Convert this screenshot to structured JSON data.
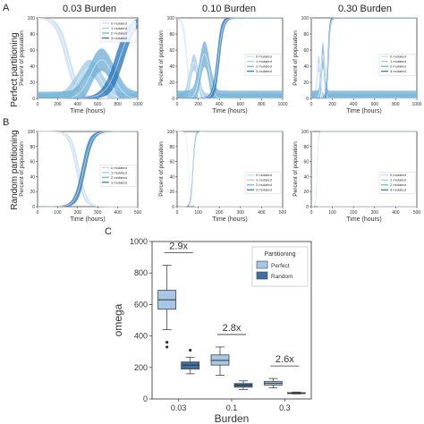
{
  "figure": {
    "col_headers": [
      "0.03 Burden",
      "0.10 Burden",
      "0.30 Burden"
    ],
    "panel_letters": [
      "A",
      "B",
      "C"
    ],
    "row_labels": [
      "Perfect partitioning",
      "Random partitioning"
    ],
    "colors": {
      "light": "#c6dbef",
      "mid1": "#9ecae1",
      "mid2": "#6baed6",
      "dark": "#2171b5",
      "box_perfect": "#a6c8e6",
      "box_random": "#3d6fa3",
      "axis": "#444444"
    }
  },
  "chart_data": [
    {
      "id": "A1",
      "type": "area",
      "panel": "A",
      "xlabel": "Time (hours)",
      "ylabel": "Percent of population",
      "xlim": [
        0,
        1000
      ],
      "ylim": [
        0,
        100
      ],
      "xticks": [
        0,
        200,
        400,
        600,
        800,
        1000
      ],
      "yticks": [
        0,
        20,
        40,
        60,
        80,
        100
      ],
      "legend": [
        "0 mutated",
        "1 mutated",
        "2 mutated",
        "3 mutated"
      ],
      "legend_position": "top-right",
      "series": [
        {
          "name": "0 mutated",
          "t_cross": 300,
          "width": 120,
          "shape": "decay",
          "band": 12
        },
        {
          "name": "1 mutated",
          "t_cross": 520,
          "width": 150,
          "shape": "peak",
          "band": 10,
          "peak": 38
        },
        {
          "name": "2 mutated",
          "t_cross": 640,
          "width": 150,
          "shape": "peak",
          "band": 14,
          "peak": 48
        },
        {
          "name": "3 mutated",
          "t_cross": 820,
          "width": 150,
          "shape": "rise",
          "band": 18
        }
      ]
    },
    {
      "id": "A2",
      "type": "area",
      "panel": "A",
      "xlabel": "Time (hours)",
      "ylabel": "Percent of population",
      "xlim": [
        0,
        1000
      ],
      "ylim": [
        0,
        100
      ],
      "xticks": [
        0,
        200,
        400,
        600,
        800,
        1000
      ],
      "yticks": [
        0,
        20,
        40,
        60,
        80,
        100
      ],
      "legend": [
        "0 mutated",
        "1 mutated",
        "2 mutated",
        "3 mutated"
      ],
      "legend_position": "right",
      "series": [
        {
          "name": "0 mutated",
          "t_cross": 90,
          "width": 40,
          "shape": "decay",
          "band": 10
        },
        {
          "name": "1 mutated",
          "t_cross": 160,
          "width": 50,
          "shape": "peak",
          "band": 10,
          "peak": 45
        },
        {
          "name": "2 mutated",
          "t_cross": 260,
          "width": 60,
          "shape": "peak",
          "band": 16,
          "peak": 55
        },
        {
          "name": "3 mutated",
          "t_cross": 390,
          "width": 50,
          "shape": "rise",
          "band": 18
        }
      ]
    },
    {
      "id": "A3",
      "type": "area",
      "panel": "A",
      "xlabel": "Time (hours)",
      "ylabel": "Percent of population",
      "xlim": [
        0,
        1000
      ],
      "ylim": [
        0,
        100
      ],
      "xticks": [
        0,
        200,
        400,
        600,
        800,
        1000
      ],
      "yticks": [
        0,
        20,
        40,
        60,
        80,
        100
      ],
      "legend": [
        "0 mutated",
        "1 mutated",
        "2 mutated",
        "3 mutated"
      ],
      "legend_position": "right",
      "series": [
        {
          "name": "0 mutated",
          "t_cross": 40,
          "width": 15,
          "shape": "decay",
          "band": 8
        },
        {
          "name": "1 mutated",
          "t_cross": 70,
          "width": 18,
          "shape": "peak",
          "band": 10,
          "peak": 45
        },
        {
          "name": "2 mutated",
          "t_cross": 110,
          "width": 20,
          "shape": "peak",
          "band": 16,
          "peak": 55
        },
        {
          "name": "3 mutated",
          "t_cross": 160,
          "width": 20,
          "shape": "rise",
          "band": 18
        }
      ]
    },
    {
      "id": "B1",
      "type": "area",
      "panel": "B",
      "xlabel": "Time (hours)",
      "ylabel": "Percent of population",
      "xlim": [
        0,
        500
      ],
      "ylim": [
        0,
        100
      ],
      "xticks": [
        0,
        100,
        200,
        300,
        400,
        500
      ],
      "yticks": [
        0,
        20,
        40,
        60,
        80,
        100
      ],
      "legend": [
        "0 mutated",
        "1 mutated",
        "2 mutated",
        "3 mutated"
      ],
      "legend_position": "right",
      "series": [
        {
          "name": "0 mutated",
          "t_cross": 200,
          "width": 45,
          "shape": "decay",
          "band": 12
        },
        {
          "name": "3 mutated",
          "t_cross": 230,
          "width": 45,
          "shape": "rise",
          "band": 14
        }
      ]
    },
    {
      "id": "B2",
      "type": "area",
      "panel": "B",
      "xlabel": "Time (hours)",
      "ylabel": "Percent of population",
      "xlim": [
        0,
        500
      ],
      "ylim": [
        0,
        100
      ],
      "xticks": [
        0,
        100,
        200,
        300,
        400,
        500
      ],
      "yticks": [
        0,
        20,
        40,
        60,
        80,
        100
      ],
      "legend": [
        "0 mutated",
        "1 mutated",
        "2 mutated",
        "3 mutated"
      ],
      "legend_position": "bottom-right",
      "series": [
        {
          "name": "0 mutated",
          "t_cross": 55,
          "width": 12,
          "shape": "decay",
          "band": 8
        },
        {
          "name": "3 mutated",
          "t_cross": 75,
          "width": 12,
          "shape": "rise",
          "band": 10
        }
      ]
    },
    {
      "id": "B3",
      "type": "area",
      "panel": "B",
      "xlabel": "Time (hours)",
      "ylabel": "Percent of population",
      "xlim": [
        0,
        500
      ],
      "ylim": [
        0,
        100
      ],
      "xticks": [
        0,
        100,
        200,
        300,
        400,
        500
      ],
      "yticks": [
        0,
        20,
        40,
        60,
        80,
        100
      ],
      "legend": [
        "0 mutated",
        "1 mutated",
        "2 mutated",
        "3 mutated"
      ],
      "legend_position": "bottom-right",
      "series": [
        {
          "name": "0 mutated",
          "t_cross": 18,
          "width": 5,
          "shape": "decay",
          "band": 6
        },
        {
          "name": "3 mutated",
          "t_cross": 28,
          "width": 6,
          "shape": "rise",
          "band": 8
        }
      ]
    },
    {
      "id": "C",
      "type": "box",
      "panel": "C",
      "xlabel": "Burden",
      "ylabel": "omega",
      "categories": [
        "0.03",
        "0.1",
        "0.3"
      ],
      "ylim": [
        0,
        1000
      ],
      "yticks": [
        0,
        200,
        400,
        600,
        800,
        1000
      ],
      "legend_title": "Partitioning",
      "legend": [
        "Perfect",
        "Random"
      ],
      "legend_position": "top-right",
      "annotations": [
        "2.9x",
        "2.8x",
        "2.6x"
      ],
      "series": [
        {
          "name": "Perfect",
          "boxes": [
            {
              "whislo": 440,
              "q1": 570,
              "med": 630,
              "q3": 690,
              "whishi": 850,
              "fliers": [
                360,
                330
              ]
            },
            {
              "whislo": 150,
              "q1": 215,
              "med": 245,
              "q3": 280,
              "whishi": 330,
              "fliers": []
            },
            {
              "whislo": 70,
              "q1": 88,
              "med": 100,
              "q3": 112,
              "whishi": 130,
              "fliers": []
            }
          ]
        },
        {
          "name": "Random",
          "boxes": [
            {
              "whislo": 160,
              "q1": 190,
              "med": 215,
              "q3": 235,
              "whishi": 265,
              "fliers": [
                310
              ]
            },
            {
              "whislo": 60,
              "q1": 75,
              "med": 88,
              "q3": 98,
              "whishi": 115,
              "fliers": []
            },
            {
              "whislo": 32,
              "q1": 34,
              "med": 37,
              "q3": 40,
              "whishi": 44,
              "fliers": []
            }
          ]
        }
      ]
    }
  ]
}
